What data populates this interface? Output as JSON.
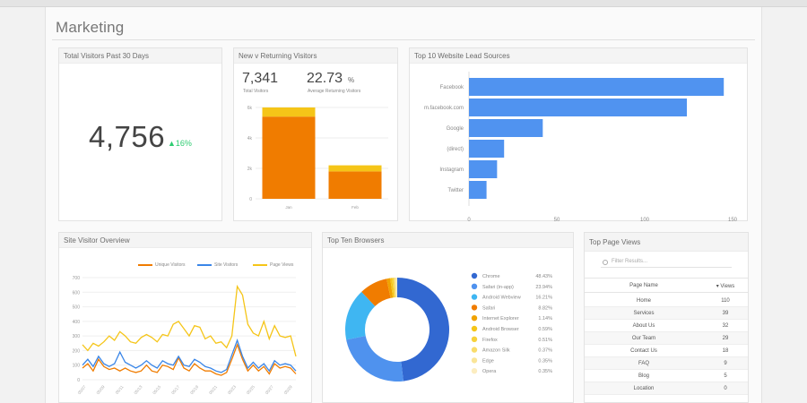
{
  "page_title": "Marketing",
  "total_visitors": {
    "title": "Total Visitors Past 30 Days",
    "value": "4,756",
    "delta": "16%",
    "delta_color": "#2ecc71"
  },
  "new_returning": {
    "title": "New v Returning Visitors",
    "kpi1": {
      "value": "7,341",
      "label": "Total Visitors"
    },
    "kpi2": {
      "value": "22.73",
      "unit": "%",
      "label": "Average Returning Visitors"
    },
    "chart_data": {
      "type": "bar",
      "categories": [
        "Jan",
        "Feb"
      ],
      "series": [
        {
          "values": [
            5.4,
            1.8
          ],
          "color": "#f07c00"
        },
        {
          "values": [
            0.6,
            0.4
          ],
          "color": "#f5c518"
        }
      ],
      "ylim": [
        0,
        6
      ],
      "yticks": [
        "0",
        "2k",
        "4k",
        "6k"
      ]
    }
  },
  "lead_sources": {
    "title": "Top 10 Website Lead Sources",
    "chart_data": {
      "type": "bar",
      "orientation": "horizontal",
      "categories": [
        "Facebook",
        "m.facebook.com",
        "Google",
        "(direct)",
        "Instagram",
        "Twitter"
      ],
      "values": [
        145,
        124,
        42,
        20,
        16,
        10
      ],
      "xlim": [
        0,
        150
      ],
      "xticks": [
        "0",
        "50",
        "100",
        "150"
      ],
      "color": "#5093f0"
    }
  },
  "site_overview": {
    "title": "Site Visitor Overview",
    "chart_data": {
      "type": "line",
      "ylim": [
        0,
        700
      ],
      "yticks": [
        "0",
        "100",
        "200",
        "300",
        "400",
        "500",
        "600",
        "700"
      ],
      "xticks": [
        "05/07",
        "05/09",
        "05/11",
        "05/13",
        "05/15",
        "05/17",
        "05/19",
        "05/21",
        "05/23",
        "05/25",
        "05/27",
        "05/29"
      ],
      "series": [
        {
          "name": "Unique Visitors",
          "color": "#f07c00",
          "values": [
            80,
            110,
            60,
            140,
            90,
            70,
            80,
            60,
            80,
            60,
            50,
            60,
            100,
            60,
            50,
            100,
            90,
            70,
            150,
            80,
            60,
            110,
            80,
            60,
            60,
            40,
            30,
            50,
            140,
            240,
            140,
            60,
            100,
            60,
            90,
            40,
            110,
            80,
            90,
            80,
            40
          ]
        },
        {
          "name": "Site Visitors",
          "color": "#3a86e8",
          "values": [
            100,
            140,
            90,
            160,
            110,
            90,
            110,
            190,
            120,
            100,
            80,
            100,
            130,
            100,
            80,
            130,
            110,
            100,
            160,
            100,
            90,
            140,
            120,
            90,
            80,
            60,
            50,
            70,
            170,
            270,
            160,
            80,
            120,
            80,
            110,
            60,
            130,
            100,
            110,
            100,
            60
          ]
        },
        {
          "name": "Page Views",
          "color": "#f5c518",
          "values": [
            240,
            200,
            250,
            230,
            260,
            300,
            270,
            330,
            300,
            260,
            250,
            290,
            310,
            290,
            260,
            310,
            300,
            380,
            400,
            350,
            300,
            370,
            360,
            280,
            300,
            250,
            260,
            220,
            300,
            640,
            580,
            380,
            320,
            300,
            400,
            280,
            370,
            300,
            290,
            300,
            160
          ]
        }
      ]
    }
  },
  "browsers": {
    "title": "Top Ten Browsers",
    "chart_data": {
      "type": "pie",
      "donut": true,
      "items": [
        {
          "name": "Chrome",
          "pct": "48.43%",
          "value": 48.43,
          "color": "#3268d1"
        },
        {
          "name": "Safari (in-app)",
          "pct": "23.94%",
          "value": 23.94,
          "color": "#4f92ee"
        },
        {
          "name": "Android Webview",
          "pct": "16.21%",
          "value": 16.21,
          "color": "#3fb6f2"
        },
        {
          "name": "Safari",
          "pct": "8.82%",
          "value": 8.82,
          "color": "#f07c00"
        },
        {
          "name": "Internet Explorer",
          "pct": "1.14%",
          "value": 1.14,
          "color": "#f0a200"
        },
        {
          "name": "Android Browser",
          "pct": "0.59%",
          "value": 0.59,
          "color": "#f5c518"
        },
        {
          "name": "Firefox",
          "pct": "0.51%",
          "value": 0.51,
          "color": "#f7d13a"
        },
        {
          "name": "Amazon Silk",
          "pct": "0.37%",
          "value": 0.37,
          "color": "#f9dc6b"
        },
        {
          "name": "Edge",
          "pct": "0.35%",
          "value": 0.35,
          "color": "#fae598"
        },
        {
          "name": "Opera",
          "pct": "0.35%",
          "value": 0.35,
          "color": "#fcedc0"
        }
      ]
    }
  },
  "top_pages": {
    "title": "Top Page Views",
    "search_placeholder": "Filter Results...",
    "col_name": "Page Name",
    "col_views": "Views",
    "sort_icon": "▾",
    "rows": [
      {
        "name": "Home",
        "views": "110"
      },
      {
        "name": "Services",
        "views": "39"
      },
      {
        "name": "About Us",
        "views": "32"
      },
      {
        "name": "Our Team",
        "views": "29"
      },
      {
        "name": "Contact Us",
        "views": "18"
      },
      {
        "name": "FAQ",
        "views": "9"
      },
      {
        "name": "Blog",
        "views": "5"
      },
      {
        "name": "Location",
        "views": "0"
      }
    ]
  }
}
